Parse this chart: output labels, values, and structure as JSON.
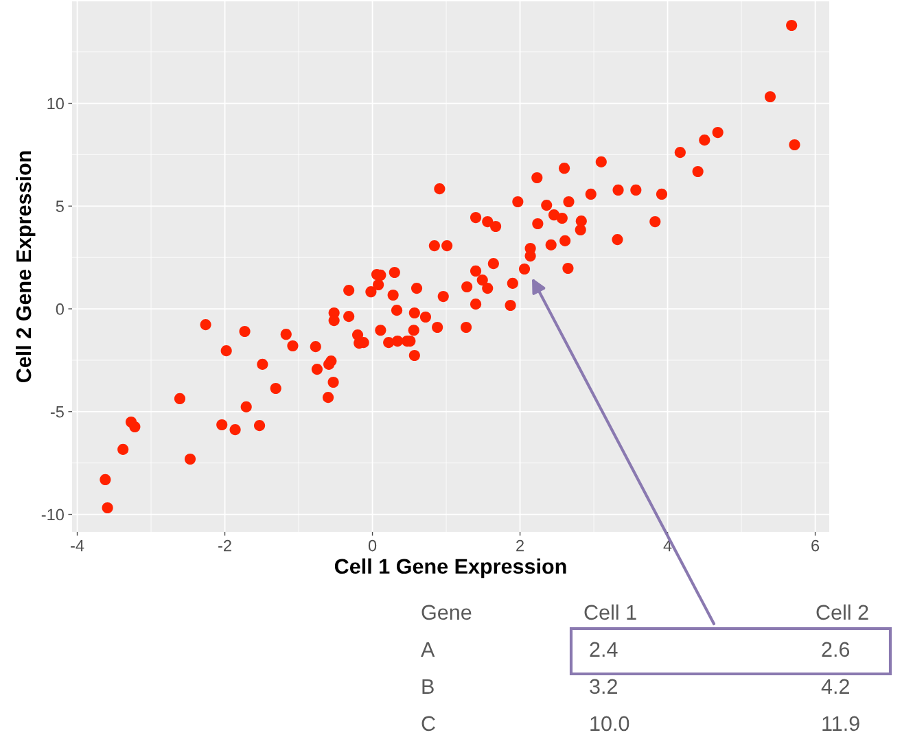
{
  "chart_data": {
    "type": "scatter",
    "xlabel": "Cell 1 Gene Expression",
    "ylabel": "Cell 2 Gene Expression",
    "color": "#ff2200",
    "marker": "circle",
    "grid": true,
    "xlim": [
      -4.07,
      6.19
    ],
    "ylim": [
      -10.85,
      14.96
    ],
    "xticks": [
      -4,
      -2,
      0,
      2,
      4,
      6
    ],
    "yticks": [
      -10,
      -5,
      0,
      5,
      10
    ],
    "x": [
      -3.62,
      -3.59,
      -3.38,
      -3.27,
      -3.22,
      -2.61,
      -2.47,
      -2.26,
      -1.98,
      -2.04,
      -1.86,
      -1.73,
      -1.71,
      -1.53,
      -1.49,
      -1.31,
      -1.17,
      -1.08,
      -0.77,
      -0.75,
      -0.6,
      -0.59,
      -0.56,
      -0.53,
      -0.52,
      -0.52,
      -0.32,
      -0.32,
      -0.2,
      -0.18,
      -0.12,
      -0.02,
      0.06,
      0.11,
      0.08,
      0.11,
      0.22,
      0.28,
      0.3,
      0.33,
      0.34,
      0.47,
      0.51,
      0.56,
      0.57,
      0.57,
      0.6,
      0.72,
      0.84,
      0.88,
      0.91,
      0.96,
      1.01,
      1.27,
      1.28,
      1.4,
      1.4,
      1.4,
      1.49,
      1.56,
      1.56,
      1.64,
      1.67,
      1.87,
      1.9,
      1.97,
      2.06,
      2.14,
      2.14,
      2.24,
      2.23,
      2.36,
      2.42,
      2.46,
      2.57,
      2.6,
      2.61,
      2.65,
      2.66,
      2.82,
      2.83,
      2.96,
      3.1,
      3.32,
      3.33,
      3.57,
      3.83,
      3.92,
      4.17,
      4.41,
      4.5,
      4.68,
      5.39,
      5.68,
      5.72
    ],
    "values": [
      -8.31,
      -9.68,
      -6.84,
      -5.51,
      -5.74,
      -4.37,
      -7.31,
      -0.77,
      -2.04,
      -5.64,
      -5.88,
      -1.1,
      -4.77,
      -5.68,
      -2.7,
      -3.87,
      -1.24,
      -1.8,
      -1.84,
      -2.94,
      -4.31,
      -2.7,
      -2.54,
      -3.57,
      -0.2,
      -0.57,
      0.9,
      -0.37,
      -1.27,
      -1.67,
      -1.64,
      0.83,
      1.67,
      1.64,
      1.17,
      -1.04,
      -1.64,
      0.67,
      1.77,
      -0.07,
      -1.57,
      -1.57,
      -1.57,
      -1.04,
      -2.27,
      -0.2,
      1.0,
      -0.4,
      3.07,
      -0.9,
      5.84,
      0.6,
      3.07,
      -0.9,
      1.07,
      4.44,
      0.23,
      1.84,
      1.4,
      4.24,
      1.0,
      2.2,
      4.01,
      0.17,
      1.24,
      5.21,
      1.94,
      2.57,
      2.94,
      4.14,
      6.38,
      5.04,
      3.11,
      4.57,
      4.41,
      6.84,
      3.31,
      1.97,
      5.21,
      3.84,
      4.27,
      5.58,
      7.15,
      3.37,
      5.78,
      5.78,
      4.24,
      5.58,
      7.61,
      6.68,
      8.21,
      8.58,
      10.32,
      13.79,
      7.98
    ],
    "annotations": [
      "Gene",
      "Cell 1",
      "Cell 2",
      "A",
      "2.4",
      "2.6",
      "B",
      "3.2",
      "4.2",
      "C",
      "10.0",
      "11.9"
    ]
  }
}
